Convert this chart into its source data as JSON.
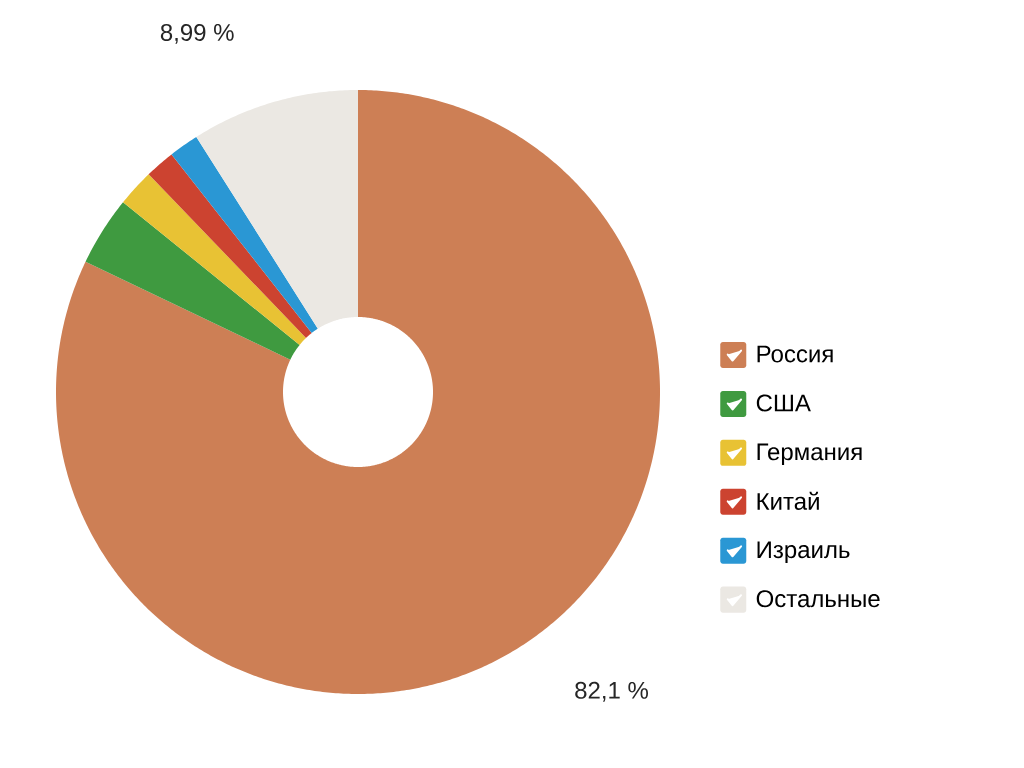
{
  "chart_data": {
    "type": "donut",
    "categories": [
      "Россия",
      "США",
      "Германия",
      "Китай",
      "Израиль",
      "Остальные"
    ],
    "values": [
      82.1,
      3.71,
      2.0,
      1.6,
      1.6,
      8.99
    ],
    "colors": [
      "#cd7f55",
      "#3f9a40",
      "#e8c234",
      "#cc4330",
      "#2a97d4",
      "#ebe8e3"
    ],
    "value_labels": [
      "82,1 %",
      null,
      null,
      null,
      null,
      "8,99 %"
    ],
    "legend": "right"
  }
}
